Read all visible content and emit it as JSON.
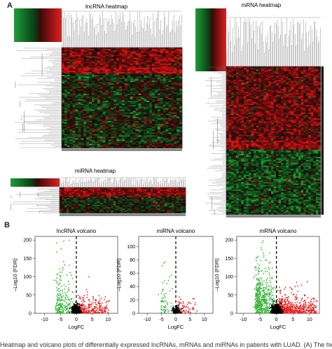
{
  "figure": {
    "panel_a_label": "A",
    "panel_b_label": "B",
    "caption": "Heatmap and volcano plots of differentially expressed lncRNAs, mRNAs and miRNAs in patients with LUAD. (A) The hierarchical clust"
  },
  "chart_data": [
    {
      "type": "heatmap",
      "title": "lncRNA heatmap",
      "color_scale": [
        "#1f9d3a",
        "#000000",
        "#e02020"
      ]
    },
    {
      "type": "heatmap",
      "title": "mRNA heatmap",
      "color_scale": [
        "#1f9d3a",
        "#000000",
        "#e02020"
      ]
    },
    {
      "type": "heatmap",
      "title": "miRNA heatmap",
      "color_scale": [
        "#1f9d3a",
        "#000000",
        "#e02020"
      ]
    },
    {
      "type": "scatter",
      "title": "lncRNA volcano",
      "xlabel": "LogFC",
      "ylabel": "–Log10 (FDR)",
      "xlim": [
        -13,
        13
      ],
      "ylim": [
        0,
        210
      ],
      "xticks": [
        -10,
        -5,
        0,
        5,
        10
      ],
      "yticks": [
        0,
        50,
        100,
        150,
        200
      ],
      "threshold_line_x": 0,
      "colors": {
        "down": "#3cb43c",
        "up": "#e82020",
        "ns": "#000000"
      }
    },
    {
      "type": "scatter",
      "title": "miRNA volcano",
      "xlabel": "LogFC",
      "ylabel": "–Log10 (FDR)",
      "xlim": [
        -13,
        13
      ],
      "ylim": [
        0,
        115
      ],
      "xticks": [
        -10,
        -5,
        0,
        5,
        10
      ],
      "yticks": [
        0,
        20,
        40,
        60,
        80,
        100
      ],
      "threshold_line_x": 0,
      "colors": {
        "down": "#3cb43c",
        "up": "#e82020",
        "ns": "#000000"
      }
    },
    {
      "type": "scatter",
      "title": "mRNA volcano",
      "xlabel": "LogFC",
      "ylabel": "–Log10 (FDR)",
      "xlim": [
        -12,
        13
      ],
      "ylim": [
        0,
        210
      ],
      "xticks": [
        -10,
        -5,
        0,
        5,
        10
      ],
      "yticks": [
        0,
        50,
        100,
        150,
        200
      ],
      "threshold_line_x": 0,
      "colors": {
        "down": "#3cb43c",
        "up": "#e82020",
        "ns": "#000000"
      }
    }
  ]
}
